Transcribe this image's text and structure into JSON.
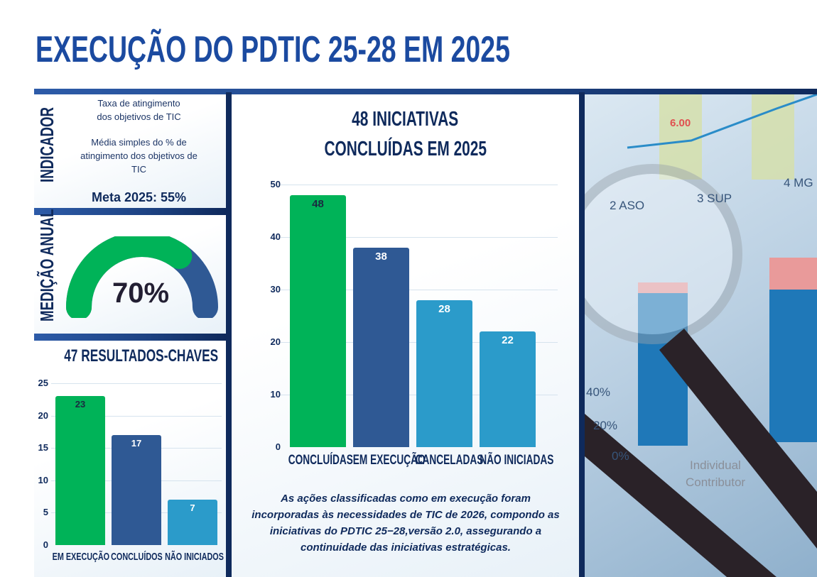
{
  "title": "EXECUÇÃO DO PDTIC 25-28 EM 2025",
  "indicator": {
    "side_label": "INDICADOR",
    "line1": "Taxa de atingimento",
    "line2": "dos objetivos de TIC",
    "desc1": "Média simples do % de",
    "desc2": "atingimento dos objetivos de",
    "desc3": "TIC",
    "target": "Meta 2025: 55%"
  },
  "annual": {
    "side_label": "MEDIÇÃO ANUAL",
    "value_text": "70%",
    "value": 70
  },
  "colors": {
    "green": "#00b358",
    "navy": "#2f5994",
    "blue": "#2b9bca",
    "title": "#1b4aa0"
  },
  "chart_data": [
    {
      "type": "bar",
      "title": "48 INICIATIVAS CONCLUÍDAS EM 2025",
      "title_line1": "48 INICIATIVAS",
      "title_line2": "CONCLUÍDAS EM 2025",
      "categories": [
        "CONCLUÍDAS",
        "EM EXECUÇÃO",
        "CANCELADAS",
        "NÃO INICIADAS"
      ],
      "values": [
        48,
        38,
        28,
        22
      ],
      "labels": [
        "48",
        "38",
        "28",
        "22"
      ],
      "ylim": [
        0,
        50
      ],
      "yticks": [
        "0",
        "10",
        "20",
        "30",
        "40",
        "50"
      ],
      "grid": true
    },
    {
      "type": "bar",
      "title": "47 RESULTADOS-CHAVES",
      "categories": [
        "EM EXECUÇÃO",
        "CONCLUÍDOS",
        "NÃO INICIADOS"
      ],
      "values": [
        23,
        17,
        7
      ],
      "labels": [
        "23",
        "17",
        "7"
      ],
      "ylim": [
        0,
        25
      ],
      "yticks": [
        "0",
        "5",
        "10",
        "15",
        "20",
        "25"
      ],
      "grid": true
    }
  ],
  "note": {
    "l1": "As ações classificadas como em execução foram",
    "l2": "incorporadas às necessidades de TIC de 2026, compondo as",
    "l3": "iniciativas do PDTIC 25−28,versão 2.0, assegurando a",
    "l4": "continuidade das iniciativas estratégicas."
  },
  "photo": {
    "labels": [
      "6.00",
      "2 ASO",
      "3 SUP",
      "4 MG",
      "40%",
      "20%",
      "0%",
      "Individual",
      "Contributor"
    ]
  }
}
